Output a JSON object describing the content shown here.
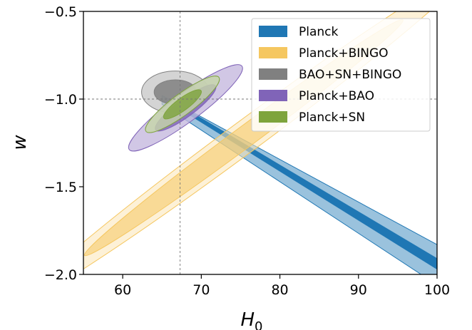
{
  "chart_data": {
    "type": "contour",
    "title": "",
    "xlabel": "H",
    "xlabel_sub": "0",
    "ylabel": "w",
    "xlim": [
      55,
      100
    ],
    "ylim": [
      -2.0,
      -0.5
    ],
    "xticks": [
      60,
      70,
      80,
      90,
      100
    ],
    "yticks": [
      -0.5,
      -1.0,
      -1.5,
      -2.0
    ],
    "xtick_labels": [
      "60",
      "70",
      "80",
      "90",
      "100"
    ],
    "ytick_labels": [
      "−0.5",
      "−1.0",
      "−1.5",
      "−2.0"
    ],
    "reference_lines": {
      "x": 67.3,
      "y": -1.0
    },
    "grid": false,
    "legend_position": "top-right",
    "series": [
      {
        "name": "Planck",
        "color": "#1f77b4",
        "contour_68": [
          [
            67,
            -1.03
          ],
          [
            100,
            -1.91
          ],
          [
            100,
            -1.97
          ],
          [
            66,
            -1.02
          ]
        ],
        "contour_95": [
          [
            65,
            -0.98
          ],
          [
            100,
            -1.83
          ],
          [
            100,
            -2.06
          ],
          [
            65,
            -1.03
          ]
        ]
      },
      {
        "name": "Planck+BINGO",
        "color": "#f5c760",
        "center": [
          75.4,
          -1.22
        ],
        "contour_68": {
          "length_x": 24,
          "width_w": 0.06
        },
        "contour_95": {
          "length_x": 33,
          "width_w": 0.09
        }
      },
      {
        "name": "BAO+SN+BINGO",
        "color": "#808080",
        "center": [
          66.7,
          -0.96
        ],
        "contour_68": {
          "rx": 2.7,
          "rw": 0.07
        },
        "contour_95": {
          "rx": 4.3,
          "rw": 0.12
        }
      },
      {
        "name": "Planck+BAO",
        "color": "#8064b8",
        "center": [
          68.0,
          -1.05
        ],
        "contour_68": {
          "length_x": 4.5,
          "width_w": 0.05
        },
        "contour_95": {
          "length_x": 8.5,
          "width_w": 0.08
        }
      },
      {
        "name": "Planck+SN",
        "color": "#7ea43c",
        "center": [
          67.6,
          -1.03
        ],
        "contour_68": {
          "length_x": 2.8,
          "width_w": 0.035
        },
        "contour_95": {
          "length_x": 5.5,
          "width_w": 0.06
        }
      }
    ]
  }
}
